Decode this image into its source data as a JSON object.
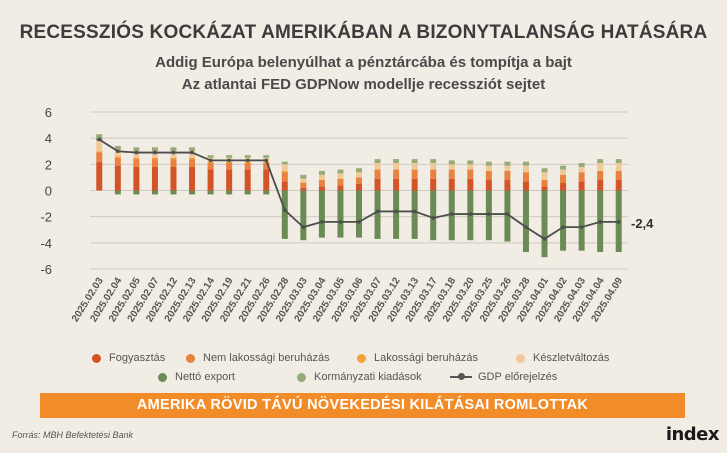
{
  "title": "RECESSZIÓS KOCKÁZAT AMERIKÁBAN A BIZONYTALANSÁG HATÁSÁRA",
  "subtitle1": "Addig Európa belenyúlhat a pénztárcába és tompítja a bajt",
  "subtitle2": "Az atlantai  FED GDPNow modellje recessziót sejtet",
  "banner": "AMERIKA RÖVID TÁVÚ NÖVEKEDÉSI KILÁTÁSAI ROMLOTTAK",
  "source": "Forrás: MBH Befektetési Bank",
  "logo": "index",
  "chart_data": {
    "type": "bar",
    "stacked": true,
    "ylim": [
      -6,
      6
    ],
    "yticks": [
      6,
      4,
      2,
      0,
      -2,
      -4,
      -6
    ],
    "last_value_label": "-2,4",
    "categories": [
      "2025.02.03",
      "2025.02.04",
      "2025.02.05",
      "2025.02.07",
      "2025.02.12",
      "2025.02.13",
      "2025.02.14",
      "2025.02.19",
      "2025.02.21",
      "2025.02.26",
      "2025.02.28",
      "2025.03.03",
      "2025.03.04",
      "2025.03.05",
      "2025.03.06",
      "2025.03.07",
      "2025.03.12",
      "2025.03.13",
      "2025.03.17",
      "2025.03.18",
      "2025.03.20",
      "2025.03.25",
      "2025.03.26",
      "2025.03.28",
      "2025.04.01",
      "2025.04.02",
      "2025.04.03",
      "2025.04.04",
      "2025.04.09"
    ],
    "series": [
      {
        "name": "Fogyasztás",
        "color": "#d4542a",
        "values": [
          2.2,
          1.9,
          1.8,
          1.8,
          1.8,
          1.8,
          1.6,
          1.6,
          1.6,
          1.6,
          0.7,
          0.2,
          0.3,
          0.4,
          0.5,
          0.9,
          0.9,
          0.9,
          0.9,
          0.9,
          0.9,
          0.8,
          0.8,
          0.7,
          0.3,
          0.6,
          0.7,
          0.8,
          0.8
        ]
      },
      {
        "name": "Nem lakossági beruházás",
        "color": "#e8823e",
        "values": [
          0.7,
          0.6,
          0.6,
          0.6,
          0.6,
          0.6,
          0.5,
          0.5,
          0.5,
          0.5,
          0.7,
          0.4,
          0.5,
          0.5,
          0.5,
          0.7,
          0.7,
          0.7,
          0.7,
          0.7,
          0.7,
          0.7,
          0.7,
          0.7,
          0.5,
          0.6,
          0.7,
          0.7,
          0.7
        ]
      },
      {
        "name": "Lakossági beruházás",
        "color": "#f5a13a",
        "values": [
          0.1,
          0.1,
          0.1,
          0.1,
          0.1,
          0.1,
          0.1,
          0.1,
          0.1,
          0.1,
          0.1,
          0.0,
          0.0,
          0.0,
          0.0,
          0.0,
          0.0,
          0.0,
          0.0,
          0.0,
          0.0,
          0.0,
          0.0,
          0.0,
          0.0,
          0.0,
          0.0,
          0.0,
          0.0
        ]
      },
      {
        "name": "Készletváltozás",
        "color": "#efc99a",
        "values": [
          0.8,
          0.5,
          0.5,
          0.5,
          0.5,
          0.5,
          0.3,
          0.3,
          0.3,
          0.3,
          0.5,
          0.3,
          0.4,
          0.4,
          0.4,
          0.5,
          0.5,
          0.5,
          0.5,
          0.4,
          0.4,
          0.4,
          0.4,
          0.5,
          0.6,
          0.4,
          0.4,
          0.6,
          0.6
        ]
      },
      {
        "name": "Nettó export",
        "color": "#6b8b55",
        "values": [
          0.2,
          -0.3,
          -0.3,
          -0.3,
          -0.3,
          -0.3,
          -0.3,
          -0.3,
          -0.3,
          -0.3,
          -3.7,
          -3.8,
          -3.6,
          -3.6,
          -3.6,
          -3.7,
          -3.7,
          -3.7,
          -3.8,
          -3.8,
          -3.8,
          -3.8,
          -3.9,
          -4.7,
          -5.1,
          -4.6,
          -4.6,
          -4.7,
          -4.7
        ]
      },
      {
        "name": "Kormányzati kiadások",
        "color": "#97ab78",
        "values": [
          0.3,
          0.3,
          0.3,
          0.3,
          0.3,
          0.3,
          0.2,
          0.2,
          0.2,
          0.2,
          0.2,
          0.3,
          0.3,
          0.3,
          0.3,
          0.3,
          0.3,
          0.3,
          0.3,
          0.3,
          0.3,
          0.3,
          0.3,
          0.3,
          0.3,
          0.3,
          0.3,
          0.3,
          0.3
        ]
      }
    ],
    "line": {
      "name": "GDP előrejelzés",
      "color": "#4d4d4d",
      "values": [
        3.9,
        3.0,
        2.9,
        2.9,
        2.9,
        2.9,
        2.3,
        2.3,
        2.3,
        2.3,
        -1.5,
        -2.8,
        -2.4,
        -2.4,
        -2.4,
        -1.6,
        -1.6,
        -1.6,
        -2.1,
        -1.8,
        -1.8,
        -1.8,
        -1.8,
        -2.8,
        -3.7,
        -2.8,
        -2.8,
        -2.4,
        -2.4
      ]
    }
  }
}
